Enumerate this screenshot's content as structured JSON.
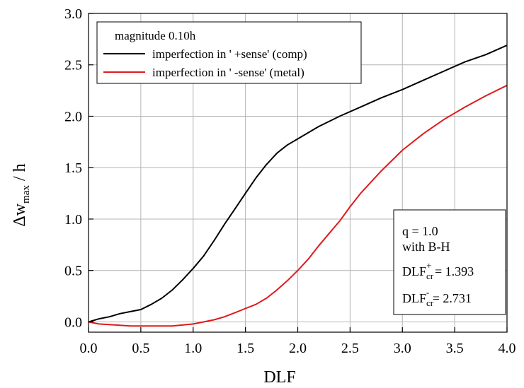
{
  "chart_data": {
    "type": "line",
    "xlabel": "DLF",
    "ylabel": {
      "base": "Δw",
      "sub": "max",
      "tail": " / h"
    },
    "xlim": [
      0.0,
      4.0
    ],
    "ylim": [
      -0.1,
      3.0
    ],
    "xticks": [
      0.0,
      0.5,
      1.0,
      1.5,
      2.0,
      2.5,
      3.0,
      3.5,
      4.0
    ],
    "yticks": [
      0.0,
      0.5,
      1.0,
      1.5,
      2.0,
      2.5,
      3.0
    ],
    "xtick_labels": [
      "0.0",
      "0.5",
      "1.0",
      "1.5",
      "2.0",
      "2.5",
      "3.0",
      "3.5",
      "4.0"
    ],
    "ytick_labels": [
      "0.0",
      "0.5",
      "1.0",
      "1.5",
      "2.0",
      "2.5",
      "3.0"
    ],
    "grid": true,
    "legend": {
      "placement": "top-left",
      "title": "magnitude 0.10h"
    },
    "series": [
      {
        "name": "imperfection in ' +sense' (comp)",
        "color": "#000000",
        "x": [
          0.0,
          0.1,
          0.2,
          0.3,
          0.4,
          0.5,
          0.6,
          0.7,
          0.8,
          0.9,
          1.0,
          1.1,
          1.2,
          1.3,
          1.4,
          1.5,
          1.6,
          1.7,
          1.8,
          1.9,
          2.0,
          2.2,
          2.4,
          2.6,
          2.8,
          3.0,
          3.2,
          3.4,
          3.6,
          3.8,
          4.0
        ],
        "y": [
          0.0,
          0.03,
          0.05,
          0.08,
          0.1,
          0.12,
          0.17,
          0.23,
          0.31,
          0.41,
          0.52,
          0.64,
          0.79,
          0.95,
          1.1,
          1.25,
          1.4,
          1.53,
          1.64,
          1.72,
          1.78,
          1.9,
          2.0,
          2.09,
          2.18,
          2.26,
          2.35,
          2.44,
          2.53,
          2.6,
          2.69
        ]
      },
      {
        "name": "imperfection in ' -sense' (metal)",
        "color": "#e0191c",
        "x": [
          0.0,
          0.1,
          0.25,
          0.4,
          0.6,
          0.8,
          1.0,
          1.1,
          1.2,
          1.3,
          1.4,
          1.5,
          1.6,
          1.7,
          1.8,
          1.9,
          2.0,
          2.1,
          2.2,
          2.3,
          2.4,
          2.5,
          2.6,
          2.8,
          3.0,
          3.2,
          3.4,
          3.6,
          3.8,
          4.0
        ],
        "y": [
          0.0,
          -0.02,
          -0.03,
          -0.04,
          -0.04,
          -0.04,
          -0.02,
          0.0,
          0.02,
          0.05,
          0.09,
          0.13,
          0.17,
          0.23,
          0.31,
          0.4,
          0.5,
          0.61,
          0.74,
          0.86,
          0.98,
          1.12,
          1.25,
          1.47,
          1.67,
          1.83,
          1.97,
          2.09,
          2.2,
          2.3
        ]
      }
    ],
    "annotations": {
      "line1": "q = 1.0",
      "line2": "with B-H",
      "dlf_plus": {
        "base": "DLF",
        "sub": "cr",
        "sup": "+",
        "value": " = 1.393"
      },
      "dlf_minus": {
        "base": "DLF",
        "sub": "cr",
        "sup": "-",
        "value": " = 2.731"
      }
    }
  }
}
